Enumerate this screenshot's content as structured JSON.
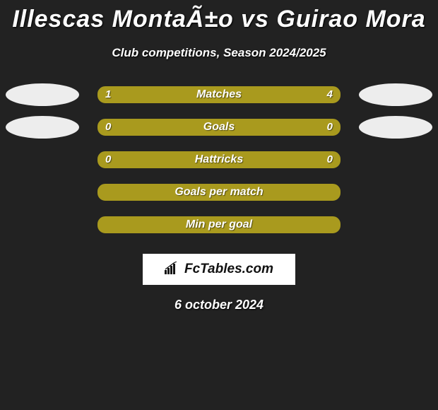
{
  "title": "Illescas MontaÃ±o vs Guirao Mora",
  "subtitle": "Club competitions, Season 2024/2025",
  "date": "6 october 2024",
  "logo_text": "FcTables.com",
  "background_color": "#222222",
  "text_color": "#ffffff",
  "bar_color": "#a99a1e",
  "bar_bg_color": "#222222",
  "rows": [
    {
      "label": "Matches",
      "left_value": "1",
      "right_value": "4",
      "left_pct": 20,
      "right_pct": 80,
      "left_fill_color": "#a99a1e",
      "right_fill_color": "#a99a1e",
      "show_left_avatar": true,
      "show_right_avatar": true
    },
    {
      "label": "Goals",
      "left_value": "0",
      "right_value": "0",
      "left_pct": 0,
      "right_pct": 0,
      "left_fill_color": "#a99a1e",
      "right_fill_color": "#a99a1e",
      "show_left_avatar": true,
      "show_right_avatar": true
    },
    {
      "label": "Hattricks",
      "left_value": "0",
      "right_value": "0",
      "left_pct": 0,
      "right_pct": 0,
      "left_fill_color": "#a99a1e",
      "right_fill_color": "#a99a1e",
      "show_left_avatar": false,
      "show_right_avatar": false
    },
    {
      "label": "Goals per match",
      "left_value": "",
      "right_value": "",
      "left_pct": 0,
      "right_pct": 0,
      "left_fill_color": "#a99a1e",
      "right_fill_color": "#a99a1e",
      "show_left_avatar": false,
      "show_right_avatar": false
    },
    {
      "label": "Min per goal",
      "left_value": "",
      "right_value": "",
      "left_pct": 0,
      "right_pct": 0,
      "left_fill_color": "#a99a1e",
      "right_fill_color": "#a99a1e",
      "show_left_avatar": false,
      "show_right_avatar": false
    }
  ]
}
